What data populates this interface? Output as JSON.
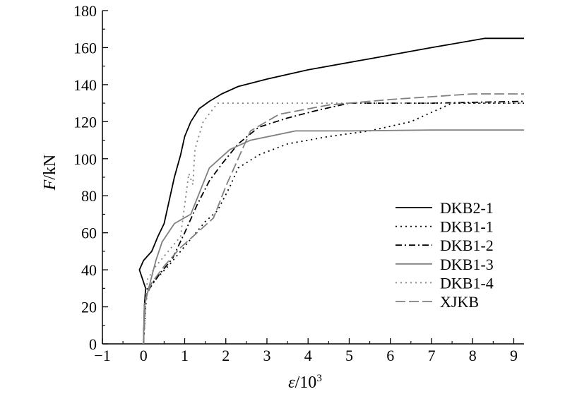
{
  "chart_data": {
    "type": "line",
    "title": "",
    "xlabel": {
      "symbol": "ε",
      "unit": "/10",
      "exponent": "3"
    },
    "ylabel": {
      "symbol": "F",
      "unit": "/kN"
    },
    "xlim": [
      -1,
      9.25
    ],
    "ylim": [
      0,
      180
    ],
    "xticks": [
      -1,
      0,
      1,
      2,
      3,
      4,
      5,
      6,
      7,
      8,
      9
    ],
    "yticks": [
      0,
      20,
      40,
      60,
      80,
      100,
      120,
      140,
      160,
      180
    ],
    "x_tick_labels": [
      "−1",
      "0",
      "1",
      "2",
      "3",
      "4",
      "5",
      "6",
      "7",
      "8",
      "9"
    ],
    "y_tick_labels": [
      "0",
      "20",
      "40",
      "60",
      "80",
      "100",
      "120",
      "140",
      "160",
      "180"
    ],
    "grid": false,
    "legend_position": "right",
    "series": [
      {
        "name": "DKB2-1",
        "color": "#000000",
        "dash": "solid",
        "points": [
          [
            0,
            0
          ],
          [
            0.02,
            20
          ],
          [
            0.05,
            30
          ],
          [
            -0.1,
            40
          ],
          [
            0.0,
            45
          ],
          [
            0.2,
            50
          ],
          [
            0.35,
            58
          ],
          [
            0.5,
            65
          ],
          [
            0.6,
            75
          ],
          [
            0.75,
            90
          ],
          [
            0.9,
            102
          ],
          [
            1.0,
            112
          ],
          [
            1.15,
            120
          ],
          [
            1.35,
            127
          ],
          [
            1.6,
            131
          ],
          [
            1.9,
            135
          ],
          [
            2.3,
            139
          ],
          [
            3.0,
            143
          ],
          [
            4.0,
            148
          ],
          [
            5.5,
            154
          ],
          [
            7.0,
            160
          ],
          [
            8.3,
            165
          ],
          [
            9.25,
            165
          ]
        ]
      },
      {
        "name": "DKB1-1",
        "color": "#000000",
        "dash": "dotted",
        "points": [
          [
            0,
            0
          ],
          [
            0.05,
            20
          ],
          [
            0.1,
            30
          ],
          [
            0.3,
            35
          ],
          [
            0.6,
            42
          ],
          [
            0.9,
            50
          ],
          [
            1.2,
            58
          ],
          [
            1.5,
            66
          ],
          [
            1.8,
            72
          ],
          [
            2.1,
            85
          ],
          [
            2.3,
            95
          ],
          [
            2.8,
            102
          ],
          [
            3.5,
            108
          ],
          [
            4.5,
            112
          ],
          [
            5.5,
            115
          ],
          [
            6.5,
            120
          ],
          [
            7.5,
            130
          ],
          [
            9.25,
            130
          ]
        ]
      },
      {
        "name": "DKB1-2",
        "color": "#000000",
        "dash": "dashdot",
        "points": [
          [
            0,
            0
          ],
          [
            0.05,
            25
          ],
          [
            0.15,
            30
          ],
          [
            0.4,
            38
          ],
          [
            0.7,
            46
          ],
          [
            1.0,
            60
          ],
          [
            1.3,
            75
          ],
          [
            1.6,
            88
          ],
          [
            1.9,
            97
          ],
          [
            2.3,
            108
          ],
          [
            2.8,
            117
          ],
          [
            3.5,
            122
          ],
          [
            4.2,
            126
          ],
          [
            5.0,
            130
          ],
          [
            7.0,
            130
          ],
          [
            9.25,
            131
          ]
        ]
      },
      {
        "name": "DKB1-3",
        "color": "#808080",
        "dash": "solid",
        "points": [
          [
            0,
            0
          ],
          [
            0.02,
            20
          ],
          [
            0.1,
            28
          ],
          [
            0.3,
            45
          ],
          [
            0.45,
            55
          ],
          [
            0.75,
            65
          ],
          [
            1.15,
            70
          ],
          [
            1.6,
            95
          ],
          [
            2.1,
            105
          ],
          [
            2.6,
            110
          ],
          [
            3.7,
            115
          ],
          [
            5.0,
            115
          ],
          [
            7.0,
            115.5
          ],
          [
            9.25,
            115.5
          ]
        ]
      },
      {
        "name": "DKB1-4",
        "color": "#808080",
        "dash": "dotted",
        "points": [
          [
            0,
            0
          ],
          [
            0.02,
            20
          ],
          [
            0.1,
            35
          ],
          [
            0.3,
            42
          ],
          [
            0.6,
            50
          ],
          [
            0.9,
            58
          ],
          [
            1.1,
            92
          ],
          [
            1.2,
            86
          ],
          [
            1.25,
            105
          ],
          [
            1.45,
            120
          ],
          [
            1.8,
            130
          ],
          [
            3.0,
            130
          ],
          [
            9.25,
            130
          ]
        ]
      },
      {
        "name": "XJKB",
        "color": "#808080",
        "dash": "longdash",
        "points": [
          [
            0,
            0
          ],
          [
            0.05,
            25
          ],
          [
            0.2,
            33
          ],
          [
            0.5,
            42
          ],
          [
            0.9,
            52
          ],
          [
            1.3,
            60
          ],
          [
            1.7,
            68
          ],
          [
            2.0,
            85
          ],
          [
            2.3,
            100
          ],
          [
            2.6,
            115
          ],
          [
            3.3,
            124
          ],
          [
            4.5,
            129
          ],
          [
            6.0,
            132
          ],
          [
            8.0,
            135
          ],
          [
            9.25,
            135
          ]
        ]
      }
    ]
  }
}
